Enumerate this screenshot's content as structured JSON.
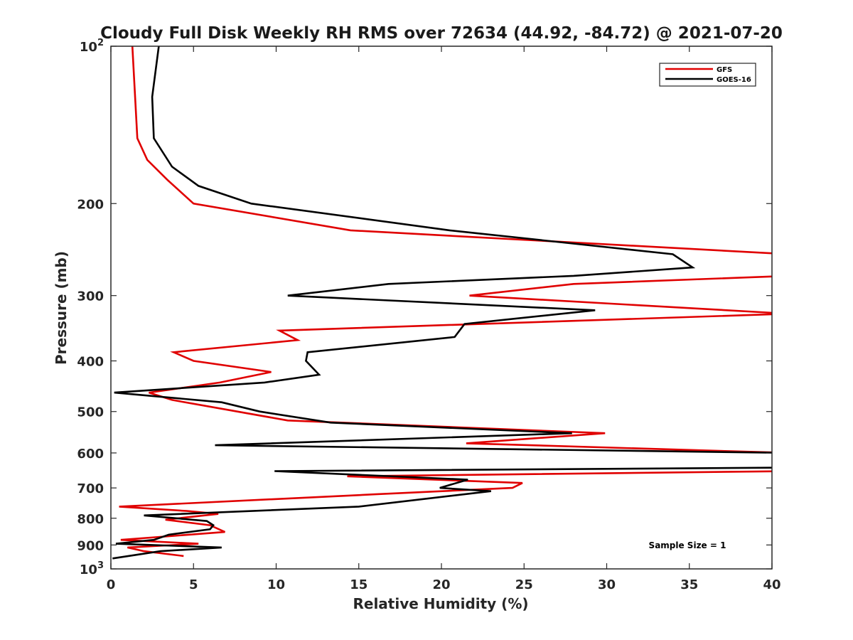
{
  "chart_data": {
    "type": "line",
    "orientation": "vertical-profile",
    "title": "Cloudy Full Disk Weekly RH RMS over 72634 (44.92, -84.72) @ 2021-07-20",
    "xlabel": "Relative Humidity (%)",
    "ylabel": "Pressure (mb)",
    "xlim": [
      0,
      40
    ],
    "ylim": [
      100,
      1000
    ],
    "yscale": "log",
    "yreversed": true,
    "xticks": [
      0,
      5,
      10,
      15,
      20,
      25,
      30,
      35,
      40
    ],
    "xtick_labels": [
      "0",
      "5",
      "10",
      "15",
      "20",
      "25",
      "30",
      "35",
      "40"
    ],
    "yticks": [
      {
        "value": 100,
        "base": "10",
        "exp": "2"
      },
      {
        "value": 200,
        "label": "200"
      },
      {
        "value": 300,
        "label": "300"
      },
      {
        "value": 400,
        "label": "400"
      },
      {
        "value": 500,
        "label": "500"
      },
      {
        "value": 600,
        "label": "600"
      },
      {
        "value": 700,
        "label": "700"
      },
      {
        "value": 800,
        "label": "800"
      },
      {
        "value": 900,
        "label": "900"
      },
      {
        "value": 1000,
        "base": "10",
        "exp": "3"
      }
    ],
    "grid": false,
    "legend": "top-right",
    "annotation": "Sample Size = 1",
    "series": [
      {
        "name": "GFS",
        "color": "#e00000",
        "points": [
          {
            "p": 100,
            "rh": 1.3
          },
          {
            "p": 150,
            "rh": 1.6
          },
          {
            "p": 165,
            "rh": 2.2
          },
          {
            "p": 180,
            "rh": 3.4
          },
          {
            "p": 200,
            "rh": 5.0
          },
          {
            "p": 225,
            "rh": 14.5
          },
          {
            "p": 250,
            "rh": 41.0
          },
          {
            "p": 275,
            "rh": 41.0
          },
          {
            "p": 285,
            "rh": 28.0
          },
          {
            "p": 300,
            "rh": 21.7
          },
          {
            "p": 325,
            "rh": 41.0
          },
          {
            "p": 350,
            "rh": 10.2
          },
          {
            "p": 365,
            "rh": 11.3
          },
          {
            "p": 385,
            "rh": 3.8
          },
          {
            "p": 400,
            "rh": 5.0
          },
          {
            "p": 420,
            "rh": 9.7
          },
          {
            "p": 440,
            "rh": 6.6
          },
          {
            "p": 460,
            "rh": 2.3
          },
          {
            "p": 475,
            "rh": 3.7
          },
          {
            "p": 520,
            "rh": 10.7
          },
          {
            "p": 550,
            "rh": 29.9
          },
          {
            "p": 575,
            "rh": 21.5
          },
          {
            "p": 600,
            "rh": 41.0
          },
          {
            "p": 650,
            "rh": 41.0
          },
          {
            "p": 665,
            "rh": 14.3
          },
          {
            "p": 685,
            "rh": 24.9
          },
          {
            "p": 700,
            "rh": 24.3
          },
          {
            "p": 720,
            "rh": 16.0
          },
          {
            "p": 760,
            "rh": 0.5
          },
          {
            "p": 775,
            "rh": 4.6
          },
          {
            "p": 785,
            "rh": 6.5
          },
          {
            "p": 805,
            "rh": 3.3
          },
          {
            "p": 825,
            "rh": 6.0
          },
          {
            "p": 850,
            "rh": 6.9
          },
          {
            "p": 880,
            "rh": 0.6
          },
          {
            "p": 895,
            "rh": 5.3
          },
          {
            "p": 910,
            "rh": 1.0
          },
          {
            "p": 925,
            "rh": 2.0
          },
          {
            "p": 945,
            "rh": 4.4
          }
        ]
      },
      {
        "name": "GOES-16",
        "color": "#000000",
        "points": [
          {
            "p": 100,
            "rh": 2.9
          },
          {
            "p": 125,
            "rh": 2.5
          },
          {
            "p": 150,
            "rh": 2.6
          },
          {
            "p": 170,
            "rh": 3.7
          },
          {
            "p": 185,
            "rh": 5.3
          },
          {
            "p": 200,
            "rh": 8.5
          },
          {
            "p": 225,
            "rh": 20.5
          },
          {
            "p": 250,
            "rh": 34.0
          },
          {
            "p": 265,
            "rh": 35.2
          },
          {
            "p": 275,
            "rh": 28.0
          },
          {
            "p": 285,
            "rh": 16.8
          },
          {
            "p": 300,
            "rh": 10.7
          },
          {
            "p": 320,
            "rh": 29.3
          },
          {
            "p": 340,
            "rh": 21.4
          },
          {
            "p": 360,
            "rh": 20.8
          },
          {
            "p": 385,
            "rh": 11.9
          },
          {
            "p": 400,
            "rh": 11.8
          },
          {
            "p": 425,
            "rh": 12.6
          },
          {
            "p": 440,
            "rh": 9.3
          },
          {
            "p": 460,
            "rh": 0.2
          },
          {
            "p": 480,
            "rh": 6.7
          },
          {
            "p": 500,
            "rh": 9.0
          },
          {
            "p": 525,
            "rh": 13.3
          },
          {
            "p": 550,
            "rh": 27.9
          },
          {
            "p": 580,
            "rh": 6.3
          },
          {
            "p": 600,
            "rh": 41.0
          },
          {
            "p": 640,
            "rh": 41.0
          },
          {
            "p": 650,
            "rh": 9.9
          },
          {
            "p": 675,
            "rh": 21.6
          },
          {
            "p": 700,
            "rh": 19.9
          },
          {
            "p": 710,
            "rh": 23.0
          },
          {
            "p": 760,
            "rh": 15.0
          },
          {
            "p": 790,
            "rh": 2.0
          },
          {
            "p": 810,
            "rh": 5.8
          },
          {
            "p": 825,
            "rh": 6.2
          },
          {
            "p": 840,
            "rh": 6.0
          },
          {
            "p": 860,
            "rh": 3.5
          },
          {
            "p": 880,
            "rh": 2.6
          },
          {
            "p": 895,
            "rh": 0.3
          },
          {
            "p": 910,
            "rh": 6.7
          },
          {
            "p": 925,
            "rh": 3.0
          },
          {
            "p": 955,
            "rh": 0.1
          }
        ]
      }
    ]
  }
}
